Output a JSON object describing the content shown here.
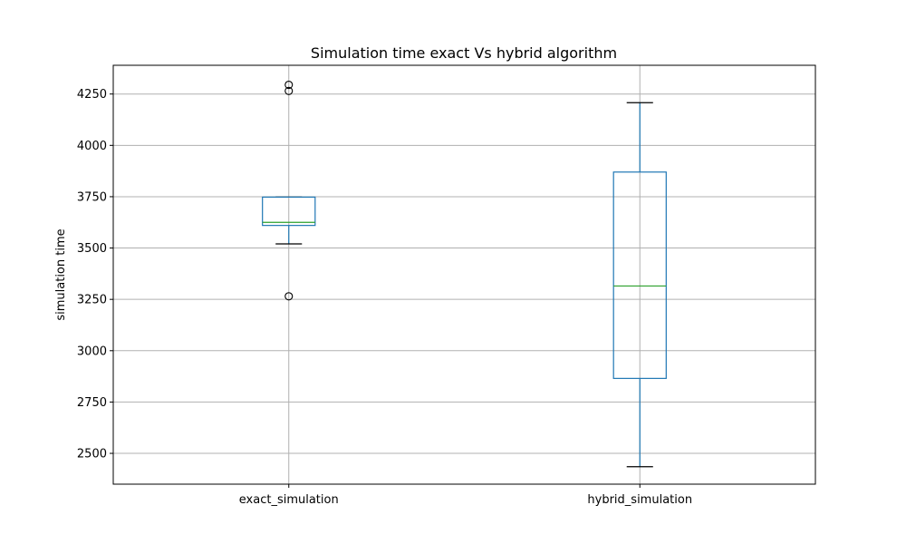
{
  "chart_data": {
    "type": "boxplot",
    "title": "Simulation time exact Vs hybrid algorithm",
    "xlabel": "",
    "ylabel": "simulation time",
    "categories": [
      "exact_simulation",
      "hybrid_simulation"
    ],
    "ylim": [
      2350,
      4390
    ],
    "yticks": [
      2500,
      2750,
      3000,
      3250,
      3500,
      3750,
      4000,
      4250
    ],
    "grid": true,
    "boxes": [
      {
        "category": "exact_simulation",
        "whisker_low": 3520,
        "q1": 3610,
        "median": 3625,
        "q3": 3748,
        "whisker_high": 3748,
        "outliers": [
          3265,
          4265,
          4295
        ]
      },
      {
        "category": "hybrid_simulation",
        "whisker_low": 2435,
        "q1": 2865,
        "median": 3315,
        "q3": 3870,
        "whisker_high": 4208,
        "outliers": []
      }
    ],
    "colors": {
      "box": "#1f77b4",
      "median": "#2ca02c",
      "whisker": "#1f77b4",
      "cap": "#000000",
      "grid": "#b0b0b0",
      "axis": "#000000"
    }
  }
}
